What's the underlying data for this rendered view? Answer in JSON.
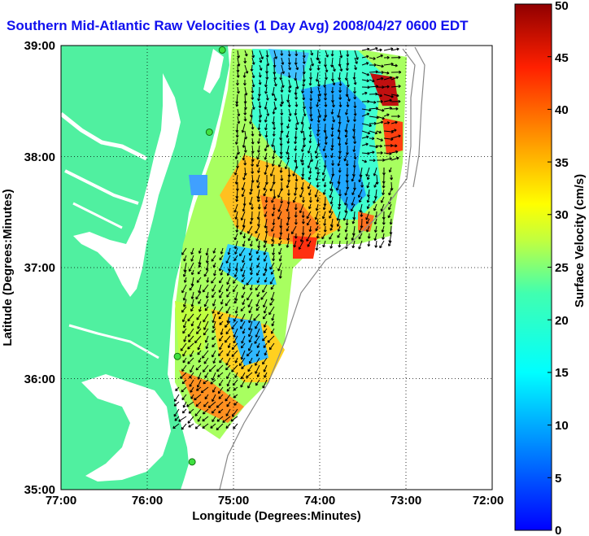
{
  "title": "Southern Mid-Atlantic Raw Velocities (1 Day Avg) 2008/04/27 0600 EDT",
  "map": {
    "xlabel": "Longitude (Degrees:Minutes)",
    "ylabel": "Latitude (Degrees:Minutes)",
    "lon_range": [
      77,
      72
    ],
    "lat_range": [
      35,
      39
    ],
    "lon_ticks": [
      "77:00",
      "76:00",
      "75:00",
      "74:00",
      "73:00",
      "72:00"
    ],
    "lat_ticks": [
      "35:00",
      "36:00",
      "37:00",
      "38:00",
      "39:00"
    ],
    "land_color": "#50f0a0",
    "grid": "dotted"
  },
  "colorbar": {
    "label": "Surface Velocity (cm/s)",
    "range": [
      0,
      50
    ],
    "ticks": [
      "0",
      "5",
      "10",
      "15",
      "20",
      "25",
      "30",
      "35",
      "40",
      "45",
      "50"
    ],
    "colormap": "jet"
  },
  "stations": [
    {
      "lon": 75.13,
      "lat": 38.96
    },
    {
      "lon": 75.28,
      "lat": 38.22
    },
    {
      "lon": 75.65,
      "lat": 36.2
    },
    {
      "lon": 75.48,
      "lat": 35.25
    }
  ]
}
